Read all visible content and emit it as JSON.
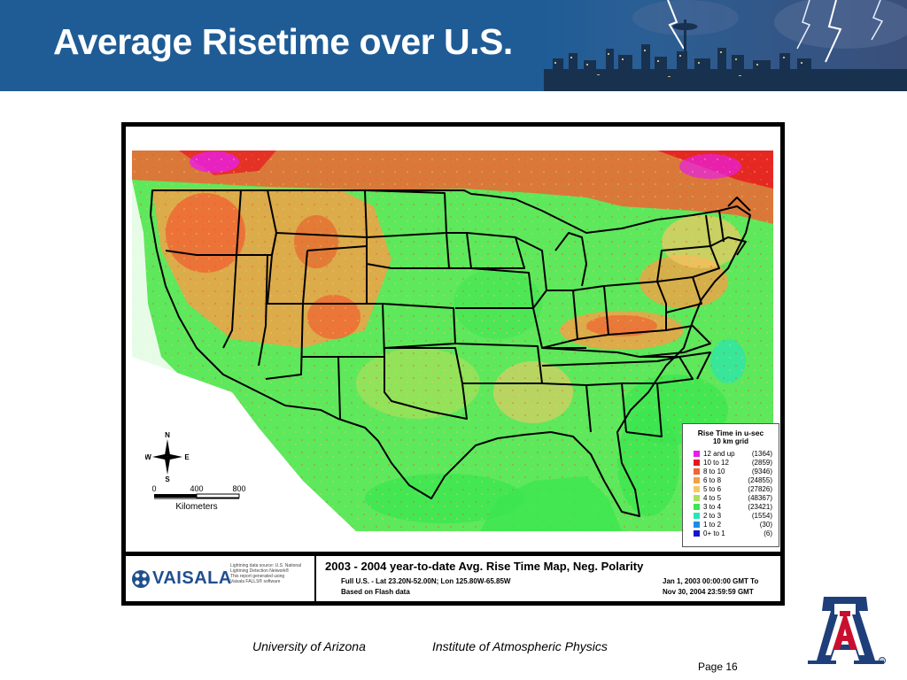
{
  "slide": {
    "title": "Average Risetime over U.S.",
    "footer_left": "University of Arizona",
    "footer_right": "Institute of Atmospheric Physics",
    "page_label": "Page 16"
  },
  "map": {
    "legend": {
      "title": "Rise Time in u-sec",
      "subtitle": "10 km grid",
      "items": [
        {
          "range": "12 and up",
          "count": "(1364)",
          "color": "#e81ee8"
        },
        {
          "range": "10 to 12",
          "count": "(2859)",
          "color": "#e8141e"
        },
        {
          "range": "8 to 10",
          "count": "(9346)",
          "color": "#f06432"
        },
        {
          "range": "6 to  8",
          "count": "(24855)",
          "color": "#f2a046"
        },
        {
          "range": "5 to  6",
          "count": "(27826)",
          "color": "#f5c864"
        },
        {
          "range": "4 to  5",
          "count": "(48367)",
          "color": "#a8e05a"
        },
        {
          "range": "3 to  4",
          "count": "(23421)",
          "color": "#3ce650"
        },
        {
          "range": "2 to  3",
          "count": "(1554)",
          "color": "#28e6b4"
        },
        {
          "range": "1 to  2",
          "count": "(30)",
          "color": "#1e8ce6"
        },
        {
          "range": "0+ to  1",
          "count": "(6)",
          "color": "#1414d2"
        }
      ]
    },
    "compass": {
      "n": "N",
      "s": "S",
      "e": "E",
      "w": "W"
    },
    "scale": {
      "ticks": [
        "0",
        "400",
        "800"
      ],
      "unit": "Kilometers"
    },
    "vaisala": {
      "logo_text": "VAISALA",
      "info_lines": [
        "Lightning data source: U.S. National",
        "Lightning Detection Network®",
        "This report generated using",
        "Vaisala FALLS® software"
      ]
    },
    "report": {
      "title": "2003 - 2004 year-to-date Avg. Rise Time Map, Neg. Polarity",
      "line1": "Full U.S. - Lat 23.20N-52.00N; Lon 125.80W-65.85W",
      "line2": "Based on Flash data",
      "date_from": "Jan 1, 2003 00:00:00 GMT To",
      "date_to": "Nov 30, 2004 23:59:59 GMT"
    }
  }
}
